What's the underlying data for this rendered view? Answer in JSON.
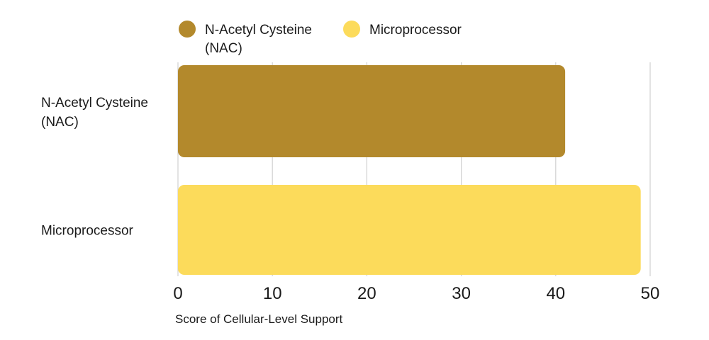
{
  "chart_data": {
    "type": "bar",
    "orientation": "horizontal",
    "categories": [
      "N-Acetyl Cysteine (NAC)",
      "Microprocessor"
    ],
    "category_label_lines": [
      [
        "N-Acetyl Cysteine",
        "(NAC)"
      ],
      [
        "Microprocessor"
      ]
    ],
    "series": [
      {
        "name": "N-Acetyl Cysteine (NAC)",
        "name_lines": [
          "N-Acetyl Cysteine",
          "(NAC)"
        ],
        "values": [
          41,
          null
        ],
        "color": "#B3892C"
      },
      {
        "name": "Microprocessor",
        "name_lines": [
          "Microprocessor"
        ],
        "values": [
          null,
          49
        ],
        "color": "#FCDB5B"
      }
    ],
    "xlabel": "Score of Cellular-Level Support",
    "ylabel": "",
    "xlim": [
      0,
      50
    ],
    "xticks": [
      "0",
      "10",
      "20",
      "30",
      "40",
      "50"
    ],
    "grid": true,
    "legend_position": "top"
  }
}
